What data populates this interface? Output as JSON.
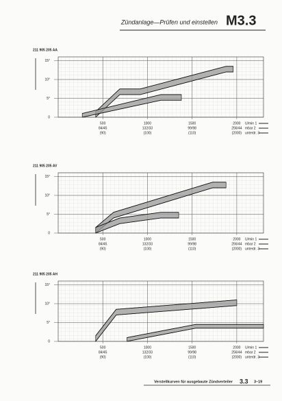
{
  "header": {
    "title": "Zündanlage—Prüfen und einstellen",
    "section": "M3.3"
  },
  "footer": {
    "text": "Verstellkurven für ausgebaute Zündverteiler",
    "section": "3.3",
    "page": "3–19"
  },
  "chart_data": [
    {
      "type": "band",
      "title": "211 905 205 AA",
      "xlim": [
        0,
        2300
      ],
      "xticks": [
        500,
        1000,
        1500,
        2000
      ],
      "xtick_rows": [
        [
          "84/45",
          "132/33",
          "99/98",
          "256/44"
        ],
        [
          "(90)",
          "(100)",
          "(110)",
          "(2000)"
        ]
      ],
      "axis_legend": [
        "U/min 1",
        "mbar 2",
        "unterdr. 3"
      ],
      "ylim": [
        0,
        16
      ],
      "yticks": [
        {
          "value": 0,
          "label": "0"
        },
        {
          "value": 5,
          "label": "5°"
        },
        {
          "value": 10,
          "label": "10°"
        },
        {
          "value": 15,
          "label": "15°"
        }
      ],
      "grid": true,
      "color": "#999",
      "series": [
        {
          "x": [
            420,
            690,
            920,
            1880,
            1960
          ],
          "lower": [
            0,
            6,
            6,
            12,
            12
          ],
          "upper": [
            1.5,
            7.5,
            7.5,
            13.5,
            13.5
          ]
        },
        {
          "x": [
            270,
            1150,
            1380
          ],
          "lower": [
            0,
            4.5,
            4.5
          ],
          "upper": [
            1,
            6,
            6
          ]
        }
      ]
    },
    {
      "type": "band",
      "title": "211 905 205 AV",
      "xlim": [
        0,
        2300
      ],
      "xticks": [
        500,
        1000,
        1500,
        2000
      ],
      "xtick_rows": [
        [
          "84/45",
          "132/33",
          "99/98",
          "256/44"
        ],
        [
          "(90)",
          "(100)",
          "(110)",
          "(2000)"
        ]
      ],
      "axis_legend": [
        "U/min 1",
        "mbar 2",
        "unterdr. 3"
      ],
      "ylim": [
        0,
        16
      ],
      "yticks": [
        {
          "value": 0,
          "label": "0"
        },
        {
          "value": 5,
          "label": "5°"
        },
        {
          "value": 10,
          "label": "10°"
        },
        {
          "value": 15,
          "label": "15°"
        }
      ],
      "grid": true,
      "color": "#999",
      "series": [
        {
          "x": [
            420,
            620,
            1730,
            1880
          ],
          "lower": [
            0,
            4,
            12,
            12
          ],
          "upper": [
            1.5,
            5.5,
            13.5,
            13.5
          ]
        },
        {
          "x": [
            420,
            690,
            1150,
            1350
          ],
          "lower": [
            0,
            2.5,
            4,
            4
          ],
          "upper": [
            1.5,
            4,
            5.5,
            5.5
          ]
        }
      ]
    },
    {
      "type": "band",
      "title": "211 905 205 AH",
      "xlim": [
        0,
        2300
      ],
      "xticks": [
        500,
        1000,
        1500,
        2000
      ],
      "xtick_rows": [
        [
          "84/45",
          "132/33",
          "99/98",
          "256/44"
        ],
        [
          "(90)",
          "(100)",
          "(110)",
          "(2000)"
        ]
      ],
      "axis_legend": [
        "U/min 1",
        "mbar 2",
        "unterdr. 3"
      ],
      "ylim": [
        0,
        16
      ],
      "yticks": [
        {
          "value": 0,
          "label": "0"
        },
        {
          "value": 5,
          "label": "5°"
        },
        {
          "value": 10,
          "label": "10°"
        },
        {
          "value": 15,
          "label": "15°"
        }
      ],
      "grid": true,
      "color": "#999",
      "series": [
        {
          "x": [
            420,
            650,
            2000
          ],
          "lower": [
            0,
            7,
            9.5
          ],
          "upper": [
            1.5,
            8.5,
            11
          ]
        },
        {
          "x": [
            770,
            1540,
            2300
          ],
          "lower": [
            0,
            3.5,
            3.5
          ],
          "upper": [
            1,
            4.5,
            4.5
          ]
        }
      ]
    }
  ]
}
